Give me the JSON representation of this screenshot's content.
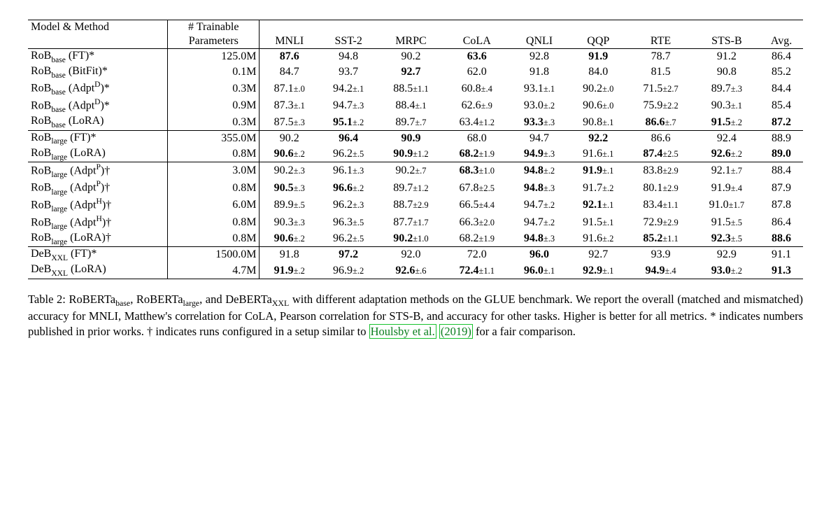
{
  "header": {
    "model_method": "Model & Method",
    "trainable": "# Trainable",
    "parameters": "Parameters",
    "tasks": [
      "MNLI",
      "SST-2",
      "MRPC",
      "CoLA",
      "QNLI",
      "QQP",
      "RTE",
      "STS-B",
      "Avg."
    ]
  },
  "groups": [
    {
      "rows": [
        {
          "name_parts": [
            "RoB",
            "base",
            " (FT)*"
          ],
          "params": "125.0M",
          "cells": [
            {
              "v": "87.6",
              "bold": true
            },
            {
              "v": "94.8"
            },
            {
              "v": "90.2"
            },
            {
              "v": "63.6",
              "bold": true
            },
            {
              "v": "92.8"
            },
            {
              "v": "91.9",
              "bold": true
            },
            {
              "v": "78.7"
            },
            {
              "v": "91.2"
            },
            {
              "v": "86.4"
            }
          ]
        },
        {
          "name_parts": [
            "RoB",
            "base",
            " (BitFit)*"
          ],
          "params": "0.1M",
          "cells": [
            {
              "v": "84.7"
            },
            {
              "v": "93.7"
            },
            {
              "v": "92.7",
              "bold": true
            },
            {
              "v": "62.0"
            },
            {
              "v": "91.8"
            },
            {
              "v": "84.0"
            },
            {
              "v": "81.5"
            },
            {
              "v": "90.8"
            },
            {
              "v": "85.2"
            }
          ]
        },
        {
          "name_parts": [
            "RoB",
            "base",
            " (Adpt"
          ],
          "name_sup": "D",
          "name_suffix": ")*",
          "params": "0.3M",
          "cells": [
            {
              "v": "87.1",
              "pm": ".0"
            },
            {
              "v": "94.2",
              "pm": ".1"
            },
            {
              "v": "88.5",
              "pm": "1.1"
            },
            {
              "v": "60.8",
              "pm": ".4"
            },
            {
              "v": "93.1",
              "pm": ".1"
            },
            {
              "v": "90.2",
              "pm": ".0"
            },
            {
              "v": "71.5",
              "pm": "2.7"
            },
            {
              "v": "89.7",
              "pm": ".3"
            },
            {
              "v": "84.4"
            }
          ]
        },
        {
          "name_parts": [
            "RoB",
            "base",
            " (Adpt"
          ],
          "name_sup": "D",
          "name_suffix": ")*",
          "params": "0.9M",
          "cells": [
            {
              "v": "87.3",
              "pm": ".1"
            },
            {
              "v": "94.7",
              "pm": ".3"
            },
            {
              "v": "88.4",
              "pm": ".1"
            },
            {
              "v": "62.6",
              "pm": ".9"
            },
            {
              "v": "93.0",
              "pm": ".2"
            },
            {
              "v": "90.6",
              "pm": ".0"
            },
            {
              "v": "75.9",
              "pm": "2.2"
            },
            {
              "v": "90.3",
              "pm": ".1"
            },
            {
              "v": "85.4"
            }
          ]
        },
        {
          "name_parts": [
            "RoB",
            "base",
            " (LoRA)"
          ],
          "params": "0.3M",
          "cells": [
            {
              "v": "87.5",
              "pm": ".3"
            },
            {
              "v": "95.1",
              "pm": ".2",
              "bold": true
            },
            {
              "v": "89.7",
              "pm": ".7"
            },
            {
              "v": "63.4",
              "pm": "1.2"
            },
            {
              "v": "93.3",
              "pm": ".3",
              "bold": true
            },
            {
              "v": "90.8",
              "pm": ".1"
            },
            {
              "v": "86.6",
              "pm": ".7",
              "bold": true
            },
            {
              "v": "91.5",
              "pm": ".2",
              "bold": true
            },
            {
              "v": "87.2",
              "bold": true
            }
          ]
        }
      ]
    },
    {
      "rows": [
        {
          "name_parts": [
            "RoB",
            "large",
            " (FT)*"
          ],
          "params": "355.0M",
          "cells": [
            {
              "v": "90.2"
            },
            {
              "v": "96.4",
              "bold": true
            },
            {
              "v": "90.9",
              "bold": true
            },
            {
              "v": "68.0"
            },
            {
              "v": "94.7"
            },
            {
              "v": "92.2",
              "bold": true
            },
            {
              "v": "86.6"
            },
            {
              "v": "92.4"
            },
            {
              "v": "88.9"
            }
          ]
        },
        {
          "name_parts": [
            "RoB",
            "large",
            " (LoRA)"
          ],
          "params": "0.8M",
          "cells": [
            {
              "v": "90.6",
              "pm": ".2",
              "bold": true
            },
            {
              "v": "96.2",
              "pm": ".5"
            },
            {
              "v": "90.9",
              "pm": "1.2",
              "bold": true
            },
            {
              "v": "68.2",
              "pm": "1.9",
              "bold": true
            },
            {
              "v": "94.9",
              "pm": ".3",
              "bold": true
            },
            {
              "v": "91.6",
              "pm": ".1"
            },
            {
              "v": "87.4",
              "pm": "2.5",
              "bold": true
            },
            {
              "v": "92.6",
              "pm": ".2",
              "bold": true
            },
            {
              "v": "89.0",
              "bold": true
            }
          ]
        }
      ]
    },
    {
      "rows": [
        {
          "name_parts": [
            "RoB",
            "large",
            " (Adpt"
          ],
          "name_sup": "P",
          "name_suffix": ")†",
          "params": "3.0M",
          "cells": [
            {
              "v": "90.2",
              "pm": ".3"
            },
            {
              "v": "96.1",
              "pm": ".3"
            },
            {
              "v": "90.2",
              "pm": ".7"
            },
            {
              "v": "68.3",
              "pm": "1.0",
              "bold": true
            },
            {
              "v": "94.8",
              "pm": ".2",
              "bold": true
            },
            {
              "v": "91.9",
              "pm": ".1",
              "bold": true
            },
            {
              "v": "83.8",
              "pm": "2.9"
            },
            {
              "v": "92.1",
              "pm": ".7"
            },
            {
              "v": "88.4"
            }
          ]
        },
        {
          "name_parts": [
            "RoB",
            "large",
            " (Adpt"
          ],
          "name_sup": "P",
          "name_suffix": ")†",
          "params": "0.8M",
          "cells": [
            {
              "v": "90.5",
              "pm": ".3",
              "bold": true
            },
            {
              "v": "96.6",
              "pm": ".2",
              "bold": true
            },
            {
              "v": "89.7",
              "pm": "1.2"
            },
            {
              "v": "67.8",
              "pm": "2.5"
            },
            {
              "v": "94.8",
              "pm": ".3",
              "bold": true
            },
            {
              "v": "91.7",
              "pm": ".2"
            },
            {
              "v": "80.1",
              "pm": "2.9"
            },
            {
              "v": "91.9",
              "pm": ".4"
            },
            {
              "v": "87.9"
            }
          ]
        },
        {
          "name_parts": [
            "RoB",
            "large",
            " (Adpt"
          ],
          "name_sup": "H",
          "name_suffix": ")†",
          "params": "6.0M",
          "cells": [
            {
              "v": "89.9",
              "pm": ".5"
            },
            {
              "v": "96.2",
              "pm": ".3"
            },
            {
              "v": "88.7",
              "pm": "2.9"
            },
            {
              "v": "66.5",
              "pm": "4.4"
            },
            {
              "v": "94.7",
              "pm": ".2"
            },
            {
              "v": "92.1",
              "pm": ".1",
              "bold": true
            },
            {
              "v": "83.4",
              "pm": "1.1"
            },
            {
              "v": "91.0",
              "pm": "1.7"
            },
            {
              "v": "87.8"
            }
          ]
        },
        {
          "name_parts": [
            "RoB",
            "large",
            " (Adpt"
          ],
          "name_sup": "H",
          "name_suffix": ")†",
          "params": "0.8M",
          "cells": [
            {
              "v": "90.3",
              "pm": ".3"
            },
            {
              "v": "96.3",
              "pm": ".5"
            },
            {
              "v": "87.7",
              "pm": "1.7"
            },
            {
              "v": "66.3",
              "pm": "2.0"
            },
            {
              "v": "94.7",
              "pm": ".2"
            },
            {
              "v": "91.5",
              "pm": ".1"
            },
            {
              "v": "72.9",
              "pm": "2.9"
            },
            {
              "v": "91.5",
              "pm": ".5"
            },
            {
              "v": "86.4"
            }
          ]
        },
        {
          "name_parts": [
            "RoB",
            "large",
            " (LoRA)†"
          ],
          "params": "0.8M",
          "cells": [
            {
              "v": "90.6",
              "pm": ".2",
              "bold": true
            },
            {
              "v": "96.2",
              "pm": ".5"
            },
            {
              "v": "90.2",
              "pm": "1.0",
              "bold": true
            },
            {
              "v": "68.2",
              "pm": "1.9"
            },
            {
              "v": "94.8",
              "pm": ".3",
              "bold": true
            },
            {
              "v": "91.6",
              "pm": ".2"
            },
            {
              "v": "85.2",
              "pm": "1.1",
              "bold": true
            },
            {
              "v": "92.3",
              "pm": ".5",
              "bold": true
            },
            {
              "v": "88.6",
              "bold": true
            }
          ]
        }
      ]
    },
    {
      "rows": [
        {
          "name_parts": [
            "DeB",
            "XXL",
            " (FT)*"
          ],
          "params": "1500.0M",
          "cells": [
            {
              "v": "91.8"
            },
            {
              "v": "97.2",
              "bold": true
            },
            {
              "v": "92.0"
            },
            {
              "v": "72.0"
            },
            {
              "v": "96.0",
              "bold": true
            },
            {
              "v": "92.7"
            },
            {
              "v": "93.9"
            },
            {
              "v": "92.9"
            },
            {
              "v": "91.1"
            }
          ]
        },
        {
          "name_parts": [
            "DeB",
            "XXL",
            " (LoRA)"
          ],
          "params": "4.7M",
          "cells": [
            {
              "v": "91.9",
              "pm": ".2",
              "bold": true
            },
            {
              "v": "96.9",
              "pm": ".2"
            },
            {
              "v": "92.6",
              "pm": ".6",
              "bold": true
            },
            {
              "v": "72.4",
              "pm": "1.1",
              "bold": true
            },
            {
              "v": "96.0",
              "pm": ".1",
              "bold": true
            },
            {
              "v": "92.9",
              "pm": ".1",
              "bold": true
            },
            {
              "v": "94.9",
              "pm": ".4",
              "bold": true
            },
            {
              "v": "93.0",
              "pm": ".2",
              "bold": true
            },
            {
              "v": "91.3",
              "bold": true
            }
          ]
        }
      ]
    }
  ],
  "caption": {
    "label": "Table 2:",
    "text_before_cite": " RoBERTa<sub>base</sub>, RoBERTa<sub>large</sub>, and DeBERTa<sub>XXL</sub> with different adaptation methods on the GLUE benchmark. We report the overall (matched and mismatched) accuracy for MNLI, Matthew's correlation for CoLA, Pearson correlation for STS-B, and accuracy for other tasks. Higher is better for all metrics. * indicates numbers published in prior works. † indicates runs configured in a setup similar to ",
    "cite_author": "Houlsby et al.",
    "cite_year": "2019",
    "text_after_cite": " for a fair comparison."
  }
}
